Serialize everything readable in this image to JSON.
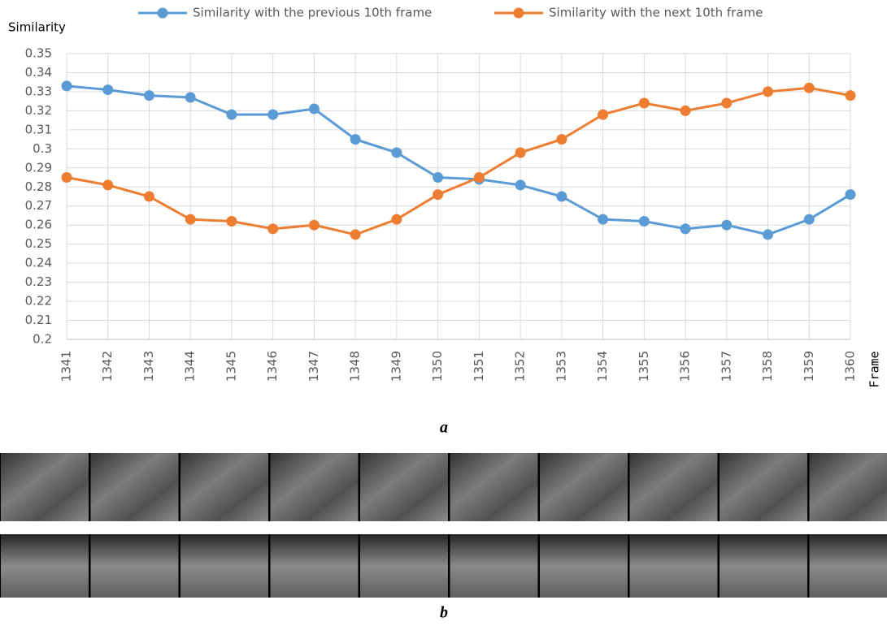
{
  "chart_data": {
    "type": "line",
    "y_label": "Similarity",
    "x_label": "Frame",
    "categories": [
      "1341",
      "1342",
      "1343",
      "1344",
      "1345",
      "1346",
      "1347",
      "1348",
      "1349",
      "1350",
      "1351",
      "1352",
      "1353",
      "1354",
      "1355",
      "1356",
      "1357",
      "1358",
      "1359",
      "1360"
    ],
    "series": [
      {
        "name": "Similarity with the previous 10th frame",
        "color": "#5b9bd5",
        "values": [
          0.333,
          0.331,
          0.328,
          0.327,
          0.318,
          0.318,
          0.321,
          0.305,
          0.298,
          0.285,
          0.284,
          0.281,
          0.275,
          0.263,
          0.262,
          0.258,
          0.26,
          0.255,
          0.263,
          0.276
        ]
      },
      {
        "name": "Similarity with the next 10th frame",
        "color": "#ed7d31",
        "values": [
          0.285,
          0.281,
          0.275,
          0.263,
          0.262,
          0.258,
          0.26,
          0.255,
          0.263,
          0.276,
          0.285,
          0.298,
          0.305,
          0.318,
          0.324,
          0.32,
          0.324,
          0.33,
          0.332,
          0.328
        ]
      }
    ],
    "ylim": [
      0.2,
      0.35
    ],
    "yticks": [
      0.2,
      0.21,
      0.22,
      0.23,
      0.24,
      0.25,
      0.26,
      0.27,
      0.28,
      0.29,
      0.3,
      0.31,
      0.32,
      0.33,
      0.34,
      0.35
    ],
    "grid": true,
    "legend": "top"
  },
  "captions": {
    "a": "a",
    "b": "b"
  }
}
